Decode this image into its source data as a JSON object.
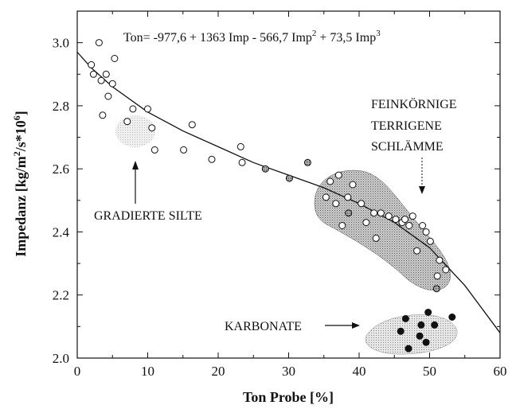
{
  "chart_data": {
    "type": "scatter",
    "xlabel": "Ton Probe [%]",
    "ylabel_main": "Impedanz [kg/m",
    "ylabel_sup1": "2",
    "ylabel_mid": "/s*10",
    "ylabel_sup2": "6",
    "ylabel_end": "]",
    "xlim": [
      0,
      60
    ],
    "ylim": [
      2.0,
      3.1
    ],
    "x_ticks": [
      "0",
      "10",
      "20",
      "30",
      "40",
      "50",
      "60"
    ],
    "y_ticks": [
      "2.0",
      "2.2",
      "2.4",
      "2.6",
      "2.8",
      "3.0"
    ],
    "equation": {
      "prefix": "Ton= -977,6 + 1363 Imp - 566,7 Imp",
      "sup1": "2",
      "middle": " + 73,5 Imp",
      "sup2": "3"
    },
    "fit_curve": {
      "x": [
        0,
        2,
        5,
        10,
        15,
        20,
        25,
        30,
        35,
        40,
        45,
        50,
        55,
        60
      ],
      "y": [
        2.97,
        2.92,
        2.86,
        2.78,
        2.72,
        2.67,
        2.62,
        2.58,
        2.54,
        2.49,
        2.43,
        2.35,
        2.23,
        2.08
      ]
    },
    "annotations": {
      "gradierte": "GRADIERTE SILTE",
      "fein_1": "FEINKÖRNIGE",
      "fein_2": "TERRIGENE",
      "fein_3": "SCHLÄMME",
      "karbonate": "KARBONATE"
    },
    "series": [
      {
        "marker": "open-circle",
        "x": [
          2.0,
          2.3,
          3.1,
          3.4,
          3.6,
          4.1,
          4.4,
          5.0,
          5.3,
          7.1,
          7.9,
          10.0,
          10.6,
          11.0,
          15.1,
          16.3,
          19.1,
          23.2,
          23.4,
          37.1,
          38.4,
          39.1,
          40.3,
          41.0,
          42.1,
          43.1,
          44.2,
          45.2,
          46.1,
          46.5,
          47.1,
          47.6,
          48.2,
          49.0,
          49.5,
          50.1,
          51.1,
          51.4,
          35.3,
          35.9,
          36.7,
          37.6,
          42.4,
          52.3
        ],
        "y": [
          2.93,
          2.9,
          3.0,
          2.88,
          2.77,
          2.9,
          2.83,
          2.87,
          2.95,
          2.75,
          2.79,
          2.79,
          2.73,
          2.66,
          2.66,
          2.74,
          2.63,
          2.67,
          2.62,
          2.58,
          2.51,
          2.55,
          2.49,
          2.43,
          2.46,
          2.46,
          2.45,
          2.44,
          2.43,
          2.44,
          2.42,
          2.45,
          2.34,
          2.42,
          2.4,
          2.37,
          2.26,
          2.31,
          2.51,
          2.56,
          2.49,
          2.42,
          2.38,
          2.28
        ]
      },
      {
        "marker": "hatched-circle",
        "x": [
          26.7,
          30.1,
          32.7,
          38.5,
          51.0
        ],
        "y": [
          2.6,
          2.57,
          2.62,
          2.46,
          2.22
        ]
      },
      {
        "marker": "filled-circle",
        "x": [
          45.9,
          46.6,
          47.0,
          48.6,
          48.8,
          49.5,
          49.8,
          50.7,
          53.2
        ],
        "y": [
          2.085,
          2.125,
          2.03,
          2.07,
          2.105,
          2.05,
          2.145,
          2.105,
          2.13
        ]
      }
    ]
  }
}
